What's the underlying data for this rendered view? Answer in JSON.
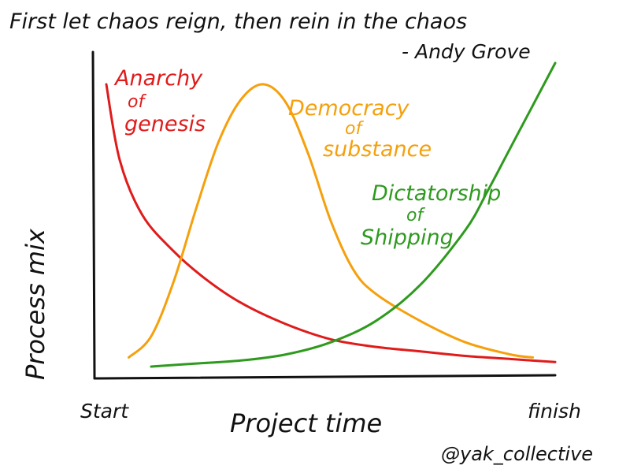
{
  "quote": {
    "text": "First let chaos reign, then rein in the chaos",
    "author": "- Andy Grove"
  },
  "credit": "@yak_collective",
  "chart_data": {
    "type": "line",
    "title": "",
    "xlabel": "Project time",
    "ylabel": "Process mix",
    "x_tick_labels": [
      "Start",
      "finish"
    ],
    "xlim": [
      0,
      1
    ],
    "ylim": [
      0,
      1
    ],
    "grid": false,
    "legend": "none",
    "series": [
      {
        "name": "Anarchy of genesis",
        "label_lines": [
          "Anarchy",
          "of",
          "genesis"
        ],
        "color": "#e01b1b",
        "x": [
          0,
          0.03,
          0.08,
          0.15,
          0.22,
          0.3,
          0.4,
          0.5,
          0.6,
          0.7,
          0.8,
          0.9,
          1.0
        ],
        "y": [
          0.93,
          0.68,
          0.5,
          0.38,
          0.29,
          0.21,
          0.14,
          0.09,
          0.065,
          0.05,
          0.035,
          0.025,
          0.015
        ]
      },
      {
        "name": "Democracy of substance",
        "label_lines": [
          "Democracy",
          "of",
          "substance"
        ],
        "color": "#f5a00c",
        "x": [
          0.05,
          0.1,
          0.15,
          0.2,
          0.25,
          0.3,
          0.35,
          0.4,
          0.45,
          0.5,
          0.55,
          0.6,
          0.7,
          0.8,
          0.9,
          0.95
        ],
        "y": [
          0.03,
          0.1,
          0.28,
          0.52,
          0.74,
          0.88,
          0.93,
          0.87,
          0.7,
          0.48,
          0.32,
          0.24,
          0.15,
          0.08,
          0.04,
          0.03
        ]
      },
      {
        "name": "Dictatorship of Shipping",
        "label_lines": [
          "Dictatorship",
          "of",
          "Shipping"
        ],
        "color": "#2e9a1e",
        "x": [
          0.1,
          0.2,
          0.3,
          0.4,
          0.5,
          0.6,
          0.7,
          0.8,
          0.85,
          0.9,
          0.95,
          1.0
        ],
        "y": [
          0.0,
          0.01,
          0.02,
          0.04,
          0.08,
          0.15,
          0.27,
          0.45,
          0.58,
          0.72,
          0.86,
          1.0
        ]
      }
    ]
  }
}
